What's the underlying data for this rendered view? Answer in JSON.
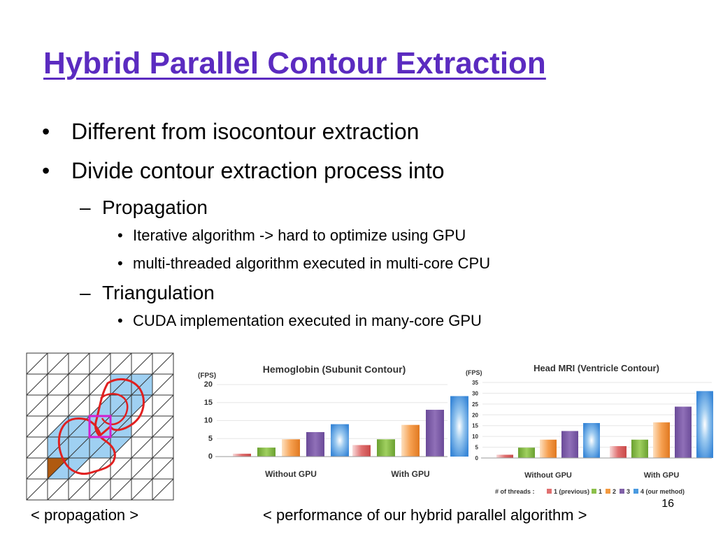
{
  "slide": {
    "title": "Hybrid Parallel Contour Extraction",
    "bullets": [
      "Different from isocontour extraction",
      "Divide contour extraction process into"
    ],
    "sub_propagation": {
      "label": "Propagation",
      "items": [
        "Iterative algorithm -> hard to optimize using GPU",
        "multi-threaded algorithm executed in multi-core CPU"
      ]
    },
    "sub_triangulation": {
      "label": "Triangulation",
      "items": [
        "CUDA implementation executed in many-core GPU"
      ]
    },
    "caption_left": "< propagation >",
    "caption_right": "< performance of our hybrid parallel algorithm >",
    "page_number": "16",
    "colors": {
      "title": "#5b2bc0",
      "grid_fill": "#9fd0f2",
      "contour": "#e02020",
      "highlight": "#d020d0",
      "seed": "#b05a10"
    }
  },
  "chart_data": [
    {
      "type": "bar",
      "title": "Hemoglobin (Subunit Contour)",
      "ylabel": "(FPS)",
      "ylim": [
        0,
        20
      ],
      "yticks": [
        0,
        5,
        10,
        15,
        20
      ],
      "categories": [
        "Without GPU",
        "With GPU"
      ],
      "series": [
        {
          "name": "1 (previous)",
          "color": "#e07070",
          "values": [
            0.8,
            3.2
          ]
        },
        {
          "name": "1",
          "color": "#8cc04a",
          "values": [
            2.5,
            4.8
          ]
        },
        {
          "name": "2",
          "color": "#f49a40",
          "values": [
            4.8,
            8.8
          ]
        },
        {
          "name": "3",
          "color": "#8060a8",
          "values": [
            6.8,
            13.0
          ]
        },
        {
          "name": "4 (our method)",
          "color": "#4a9ae0",
          "values": [
            9.0,
            16.8
          ]
        }
      ]
    },
    {
      "type": "bar",
      "title": "Head MRI (Ventricle Contour)",
      "ylabel": "(FPS)",
      "ylim": [
        0,
        35
      ],
      "yticks": [
        0,
        5,
        10,
        15,
        20,
        25,
        30,
        35
      ],
      "categories": [
        "Without GPU",
        "With GPU"
      ],
      "legend_prefix": "# of threads :",
      "series": [
        {
          "name": "1 (previous)",
          "color": "#e07070",
          "values": [
            1.5,
            5.5
          ]
        },
        {
          "name": "1",
          "color": "#8cc04a",
          "values": [
            4.8,
            8.5
          ]
        },
        {
          "name": "2",
          "color": "#f49a40",
          "values": [
            8.5,
            16.5
          ]
        },
        {
          "name": "3",
          "color": "#8060a8",
          "values": [
            12.5,
            23.8
          ]
        },
        {
          "name": "4 (our method)",
          "color": "#4a9ae0",
          "values": [
            16.2,
            31.0
          ]
        }
      ]
    }
  ]
}
